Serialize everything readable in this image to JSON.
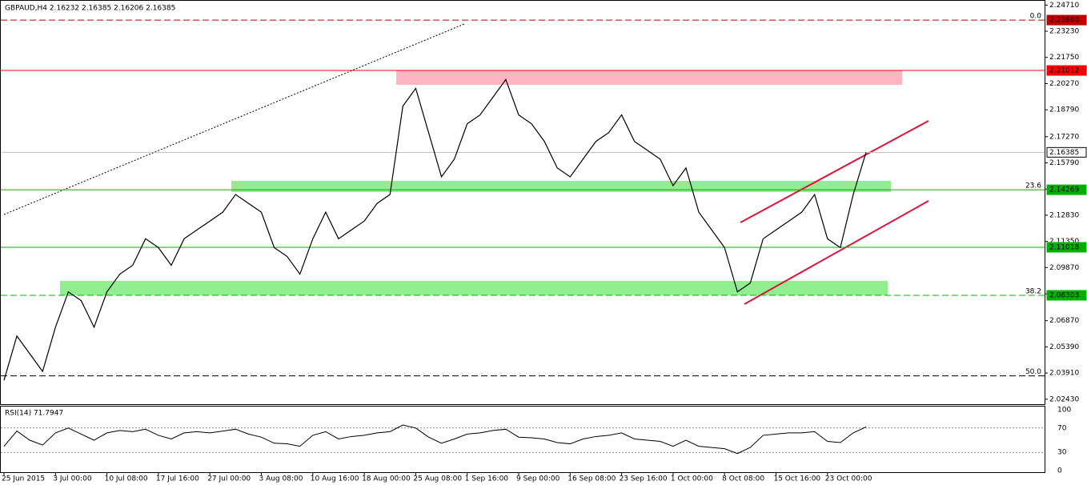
{
  "chart_data": {
    "type": "line",
    "title": "GBPAUD,H4  2.16232 2.16385 2.16206 2.16385",
    "color": "#000000",
    "categories": [
      "25 Jun 2015",
      null,
      null,
      null,
      "3 Jul 00:00",
      null,
      null,
      null,
      "10 Jul 08:00",
      null,
      null,
      null,
      "17 Jul 16:00",
      null,
      null,
      null,
      "27 Jul 00:00",
      null,
      null,
      null,
      "3 Aug 08:00",
      null,
      null,
      null,
      "10 Aug 16:00",
      null,
      null,
      null,
      "18 Aug 00:00",
      null,
      null,
      null,
      "25 Aug 08:00",
      null,
      null,
      null,
      "1 Sep 16:00",
      null,
      null,
      null,
      "9 Sep 00:00",
      null,
      null,
      null,
      "16 Sep 08:00",
      null,
      null,
      null,
      "23 Sep 16:00",
      null,
      null,
      null,
      "1 Oct 00:00",
      null,
      null,
      null,
      "8 Oct 08:00",
      null,
      null,
      null,
      "15 Oct 16:00",
      null,
      null,
      null,
      "23 Oct 00:00",
      null,
      null,
      null
    ],
    "values": [
      2.035,
      2.06,
      2.05,
      2.04,
      2.065,
      2.085,
      2.08,
      2.065,
      2.085,
      2.095,
      2.1,
      2.115,
      2.11,
      2.1,
      2.115,
      2.12,
      2.125,
      2.13,
      2.14,
      2.135,
      2.13,
      2.11,
      2.105,
      2.095,
      2.115,
      2.13,
      2.115,
      2.12,
      2.125,
      2.135,
      2.14,
      2.19,
      2.2,
      2.175,
      2.15,
      2.16,
      2.18,
      2.185,
      2.195,
      2.205,
      2.185,
      2.18,
      2.17,
      2.155,
      2.15,
      2.16,
      2.17,
      2.175,
      2.185,
      2.17,
      2.165,
      2.16,
      2.145,
      2.155,
      2.13,
      2.12,
      2.11,
      2.085,
      2.09,
      2.115,
      2.12,
      2.125,
      2.13,
      2.14,
      2.115,
      2.11,
      2.14,
      2.16385
    ],
    "ylim": [
      2.0215,
      2.2495
    ],
    "yticks": [
      {
        "value": 2.2471,
        "label": "2.24710"
      },
      {
        "value": 2.2323,
        "label": "2.23230"
      },
      {
        "value": 2.2175,
        "label": "2.21750"
      },
      {
        "value": 2.2027,
        "label": "2.20270"
      },
      {
        "value": 2.1879,
        "label": "2.18790"
      },
      {
        "value": 2.1727,
        "label": "2.17270"
      },
      {
        "value": 2.1579,
        "label": "2.15790"
      },
      {
        "value": 2.1431,
        "label": "2.14310"
      },
      {
        "value": 2.1283,
        "label": "2.12830"
      },
      {
        "value": 2.1135,
        "label": "2.11350"
      },
      {
        "value": 2.0987,
        "label": "2.09870"
      },
      {
        "value": 2.0839,
        "label": "2.08390"
      },
      {
        "value": 2.0687,
        "label": "2.06870"
      },
      {
        "value": 2.0539,
        "label": "2.05390"
      },
      {
        "value": 2.0391,
        "label": "2.03910"
      },
      {
        "value": 2.0243,
        "label": "2.02430"
      }
    ],
    "levels": [
      {
        "value": 2.2386,
        "label": "2.23860",
        "color": "#c00000",
        "fib": "0.0"
      },
      {
        "value": 2.21012,
        "label": "2.21012",
        "color": "#ff0000"
      },
      {
        "value": 2.16385,
        "label": "2.16385",
        "color": "#c0c0c0"
      },
      {
        "value": 2.14269,
        "label": "2.14269",
        "color": "#00b000",
        "fib": "23.6"
      },
      {
        "value": 2.11018,
        "label": "2.11018",
        "color": "#00b000"
      },
      {
        "value": 2.08303,
        "label": "2.08303",
        "color": "#00b000",
        "fib": "38.2"
      },
      {
        "value": 2.0375,
        "color": "#000000",
        "fib": "50.0"
      }
    ],
    "rsi": {
      "title": "RSI(14) 71.7947",
      "ylim": [
        0,
        100
      ],
      "yticks": [
        100,
        70,
        30,
        0
      ],
      "color": "#000000",
      "values": [
        40,
        65,
        50,
        42,
        62,
        70,
        60,
        50,
        62,
        66,
        64,
        68,
        58,
        52,
        62,
        64,
        62,
        65,
        68,
        60,
        55,
        45,
        44,
        40,
        58,
        64,
        52,
        56,
        58,
        62,
        64,
        75,
        70,
        55,
        45,
        52,
        60,
        62,
        66,
        68,
        55,
        54,
        52,
        46,
        44,
        52,
        56,
        58,
        62,
        52,
        50,
        48,
        40,
        50,
        40,
        38,
        36,
        28,
        38,
        58,
        60,
        62,
        62,
        64,
        48,
        46,
        62,
        71.7947
      ]
    }
  }
}
